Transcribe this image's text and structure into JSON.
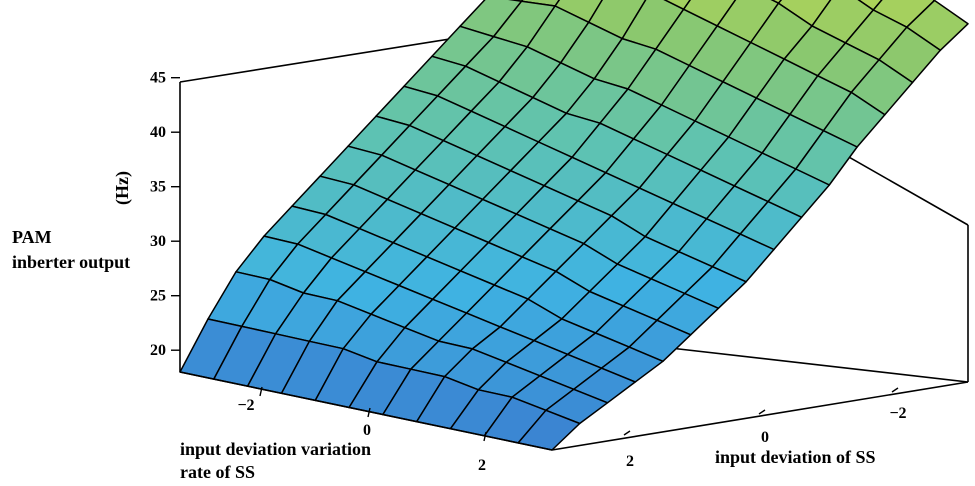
{
  "chart_data": {
    "type": "surface",
    "zlabel_lines": [
      "PAM",
      "inberter output"
    ],
    "zunit": "(Hz)",
    "xlabel": "input deviation of SS",
    "ylabel_lines": [
      "input deviation variation",
      "rate of SS"
    ],
    "zlim": [
      18,
      45
    ],
    "z_ticks": [
      "20",
      "25",
      "30",
      "35",
      "40",
      "45"
    ],
    "x_ticks": [
      "−2",
      "0",
      "2"
    ],
    "y_ticks": [
      "−2",
      "0",
      "2"
    ],
    "colormap": [
      "#3a7fd0",
      "#3fb3e2",
      "#5fc3b0",
      "#8cc86d",
      "#c9dc48",
      "#f1ee24"
    ],
    "mesh_color": "#000000",
    "grid": false,
    "surface_rows_by_y_then_x": [
      [
        44.5,
        40.0,
        37.0,
        35.0,
        33.0,
        32.0,
        31.0,
        30.0,
        29.0,
        28.0,
        27.0,
        26.0,
        25.0,
        23.5,
        21.0,
        18.0
      ],
      [
        43.0,
        41.0,
        37.5,
        35.5,
        33.5,
        32.0,
        31.0,
        30.0,
        29.0,
        28.0,
        27.0,
        26.0,
        25.0,
        23.5,
        21.0,
        18.0
      ],
      [
        42.0,
        40.5,
        38.0,
        36.0,
        34.0,
        32.0,
        30.5,
        29.5,
        28.5,
        27.5,
        26.5,
        25.5,
        24.5,
        23.0,
        21.0,
        18.0
      ],
      [
        42.0,
        40.0,
        38.0,
        36.0,
        33.5,
        31.5,
        30.0,
        29.0,
        28.0,
        27.0,
        26.0,
        25.0,
        24.0,
        23.0,
        21.0,
        18.0
      ],
      [
        41.5,
        39.5,
        37.5,
        35.5,
        33.0,
        31.0,
        29.5,
        28.5,
        27.5,
        26.5,
        25.5,
        24.5,
        23.5,
        22.5,
        21.0,
        18.0
      ],
      [
        40.5,
        39.0,
        37.0,
        35.0,
        33.0,
        31.0,
        29.5,
        28.0,
        27.0,
        26.0,
        25.0,
        24.0,
        23.0,
        22.0,
        20.5,
        18.0
      ],
      [
        39.5,
        38.5,
        36.5,
        34.5,
        32.5,
        30.5,
        29.0,
        27.5,
        26.5,
        25.5,
        24.5,
        23.5,
        22.5,
        21.5,
        20.5,
        18.0
      ],
      [
        39.0,
        37.5,
        36.0,
        34.0,
        32.0,
        30.0,
        28.5,
        27.0,
        26.0,
        25.0,
        24.0,
        23.0,
        22.0,
        21.5,
        20.5,
        18.0
      ],
      [
        38.0,
        37.0,
        35.0,
        33.5,
        31.5,
        29.5,
        28.0,
        26.5,
        25.0,
        24.0,
        23.0,
        22.0,
        21.5,
        21.0,
        20.0,
        18.0
      ],
      [
        37.5,
        36.0,
        34.5,
        33.0,
        31.0,
        29.0,
        27.5,
        26.0,
        24.5,
        23.5,
        22.5,
        21.5,
        21.0,
        20.5,
        20.0,
        18.0
      ],
      [
        36.5,
        35.5,
        34.0,
        32.5,
        30.5,
        28.5,
        27.0,
        25.5,
        24.0,
        23.0,
        22.0,
        21.0,
        20.5,
        20.0,
        19.5,
        18.0
      ],
      [
        35.5,
        34.5,
        33.0,
        31.5,
        30.0,
        28.0,
        26.5,
        25.0,
        23.5,
        22.5,
        21.5,
        20.5,
        20.0,
        19.5,
        19.0,
        18.0
      ]
    ]
  }
}
